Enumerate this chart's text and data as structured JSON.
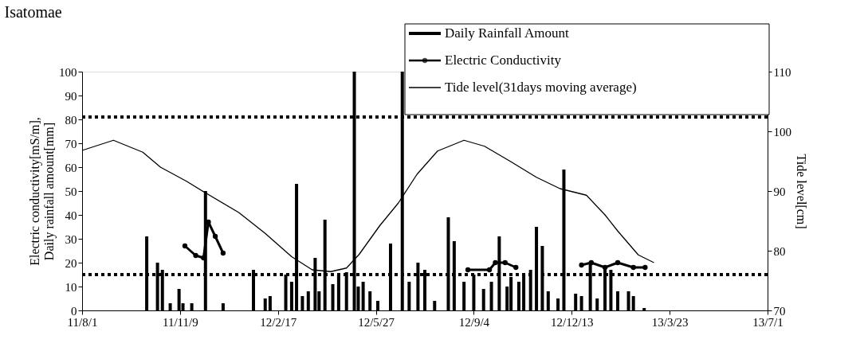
{
  "chart_data": {
    "type": "bar",
    "title": "Isatomae",
    "ylabel": "Electric conductivity[mS/m],\nDaily rainfall amount[mm]",
    "y2label": "Tide level[cm]",
    "xlim": [
      "2011-08-01",
      "2013-07-01"
    ],
    "xticks": [
      {
        "value": "2011-08-01",
        "label": "11/8/1"
      },
      {
        "value": "2011-11-09",
        "label": "11/11/9"
      },
      {
        "value": "2012-02-17",
        "label": "12/2/17"
      },
      {
        "value": "2012-05-27",
        "label": "12/5/27"
      },
      {
        "value": "2012-09-04",
        "label": "12/9/4"
      },
      {
        "value": "2012-12-13",
        "label": "12/12/13"
      },
      {
        "value": "2013-03-23",
        "label": "13/3/23"
      },
      {
        "value": "2013-07-01",
        "label": "13/7/1"
      }
    ],
    "ylim": [
      0,
      100
    ],
    "yticks": [
      0,
      10,
      20,
      30,
      40,
      50,
      60,
      70,
      80,
      90,
      100
    ],
    "y2lim": [
      70,
      110
    ],
    "y2ticks": [
      70,
      80,
      90,
      100,
      110
    ],
    "legend": "top right",
    "grid": false,
    "ref_lines": [
      {
        "axis": "y",
        "value": 81,
        "color": "#000000",
        "line_style": "dotted"
      },
      {
        "axis": "y",
        "value": 15,
        "color": "#000000",
        "line_style": "dotted"
      }
    ],
    "series": [
      {
        "name": "Daily Rainfall Amount",
        "color": "#000000",
        "x": [
          "2011-10-06",
          "2011-10-17",
          "2011-10-22",
          "2011-10-30",
          "2011-11-08",
          "2011-11-12",
          "2011-11-21",
          "2011-12-05",
          "2011-12-23",
          "2012-01-23",
          "2012-02-04",
          "2012-02-09",
          "2012-02-25",
          "2012-03-02",
          "2012-03-07",
          "2012-03-13",
          "2012-03-19",
          "2012-03-26",
          "2012-03-30",
          "2012-04-05",
          "2012-04-13",
          "2012-04-19",
          "2012-04-27",
          "2012-05-05",
          "2012-05-09",
          "2012-05-14",
          "2012-05-21",
          "2012-05-29",
          "2012-06-11",
          "2012-06-23",
          "2012-06-30",
          "2012-07-09",
          "2012-07-16",
          "2012-07-26",
          "2012-08-09",
          "2012-08-15",
          "2012-08-25",
          "2012-09-04",
          "2012-09-14",
          "2012-09-22",
          "2012-09-30",
          "2012-10-08",
          "2012-10-12",
          "2012-10-20",
          "2012-10-25",
          "2012-11-01",
          "2012-11-07",
          "2012-11-13",
          "2012-11-19",
          "2012-11-29",
          "2012-12-05",
          "2012-12-17",
          "2012-12-23",
          "2013-01-01",
          "2013-01-08",
          "2013-01-16",
          "2013-01-22",
          "2013-01-29",
          "2013-02-09",
          "2013-02-14",
          "2013-02-25"
        ],
        "values": [
          31,
          20,
          17,
          3,
          9,
          3,
          3,
          50,
          3,
          17,
          5,
          6,
          15,
          12,
          53,
          6,
          8,
          22,
          8,
          38,
          11,
          15,
          16,
          100,
          10,
          12,
          8,
          4,
          28,
          100,
          12,
          20,
          17,
          4,
          39,
          29,
          12,
          15,
          9,
          12,
          31,
          10,
          14,
          12,
          15,
          17,
          35,
          27,
          8,
          5,
          59,
          7,
          6,
          20,
          5,
          18,
          17,
          8,
          8,
          6,
          1
        ]
      },
      {
        "name": "Electric Conductivity",
        "type": "line",
        "marker": "circle",
        "color": "#000000",
        "x": [
          "2011-11-14",
          "2011-11-25",
          "2011-12-03",
          "2011-12-08",
          "2011-12-15",
          "2011-12-23",
          "2012-03-01",
          "2012-08-29",
          "2012-09-20",
          "2012-09-26",
          "2012-10-06",
          "2012-10-17",
          "2012-11-20",
          "2012-12-23",
          "2013-01-02",
          "2013-01-16",
          "2013-01-29",
          "2013-02-14",
          "2013-02-26"
        ],
        "values": [
          27,
          23,
          22,
          37,
          31,
          24,
          null,
          17,
          17,
          20,
          20,
          18,
          null,
          19,
          20,
          18,
          20,
          18,
          18
        ]
      },
      {
        "name": "Tide level(31days moving average)",
        "type": "line",
        "axis": "y2",
        "color": "#000000",
        "x": [
          "2011-08-01",
          "2011-09-02",
          "2011-10-02",
          "2011-10-20",
          "2011-11-16",
          "2011-12-05",
          "2012-01-08",
          "2012-02-04",
          "2012-03-02",
          "2012-03-23",
          "2012-04-11",
          "2012-04-27",
          "2012-05-10",
          "2012-05-31",
          "2012-06-19",
          "2012-07-08",
          "2012-07-29",
          "2012-08-25",
          "2012-09-15",
          "2012-10-12",
          "2012-11-07",
          "2012-12-01",
          "2012-12-28",
          "2013-01-16",
          "2013-01-29",
          "2013-02-19",
          "2013-03-07"
        ],
        "values": [
          96.8,
          98.5,
          96.5,
          94.0,
          91.6,
          89.7,
          86.4,
          82.9,
          79.0,
          76.8,
          76.5,
          77.1,
          79.4,
          84.2,
          88.0,
          92.8,
          96.7,
          98.5,
          97.5,
          94.9,
          92.3,
          90.4,
          89.3,
          86.0,
          83.3,
          79.3,
          78.0
        ]
      }
    ]
  }
}
